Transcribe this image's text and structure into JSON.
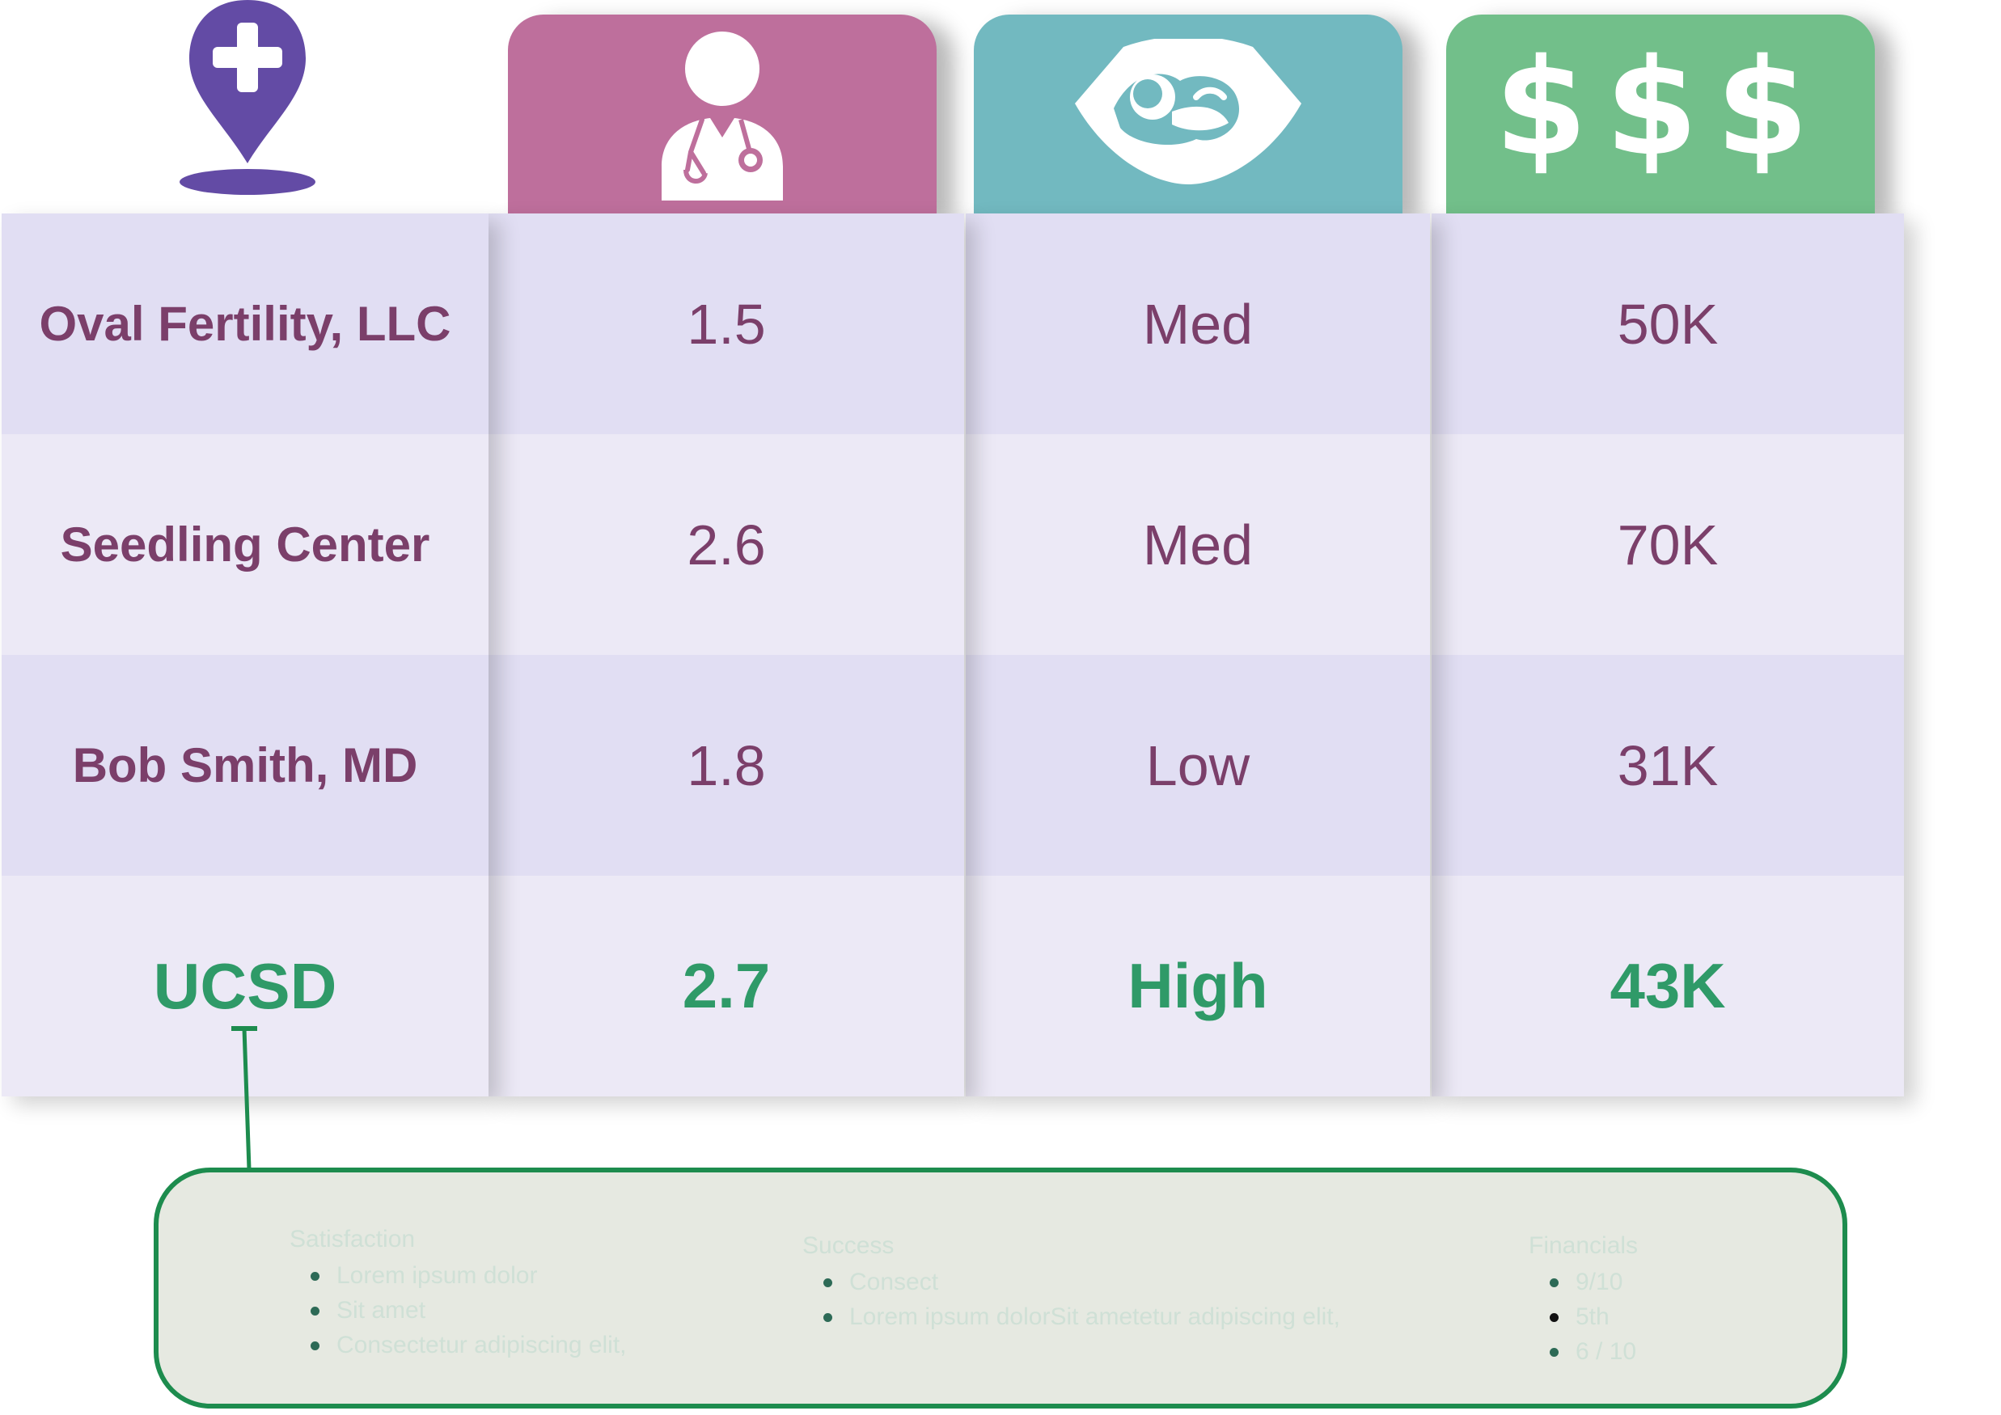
{
  "header": {
    "icons": [
      "map-pin-cross-icon",
      "doctor-icon",
      "ultrasound-icon",
      "dollar-icon"
    ],
    "money_label": "$$$",
    "colors": {
      "pin": "#634ba5",
      "doctor": "#be6f9c",
      "ultrasound": "#72b9c0",
      "money": "#72bf8a"
    }
  },
  "table": {
    "rows": [
      {
        "name": "Oval Fertility, LLC",
        "c1": "1.5",
        "c2": "Med",
        "c3": "50K"
      },
      {
        "name": "Seedling Center",
        "c1": "2.6",
        "c2": "Med",
        "c3": "70K"
      },
      {
        "name": "Bob Smith, MD",
        "c1": "1.8",
        "c2": "Low",
        "c3": "31K"
      },
      {
        "name": "UCSD",
        "c1": "2.7",
        "c2": "High",
        "c3": "43K"
      }
    ],
    "colors": {
      "text": "#7b3f6a",
      "highlight": "#2f9a68",
      "row_odd": "#e1def3",
      "row_even": "#ece9f6"
    }
  },
  "details": {
    "satisfaction": {
      "title": "Satisfaction",
      "items": [
        "Lorem ipsum dolor",
        "Sit amet",
        "Consectetur adipiscing elit,"
      ]
    },
    "success": {
      "title": "Success",
      "items": [
        "Consect",
        "Lorem ipsum dolorSit ametetur adipiscing elit,"
      ]
    },
    "financials": {
      "title": "Financials",
      "items": [
        "9/10",
        "5th",
        "6 / 10"
      ]
    },
    "colors": {
      "border": "#1d8c4e",
      "background": "#e6e9e1"
    }
  }
}
